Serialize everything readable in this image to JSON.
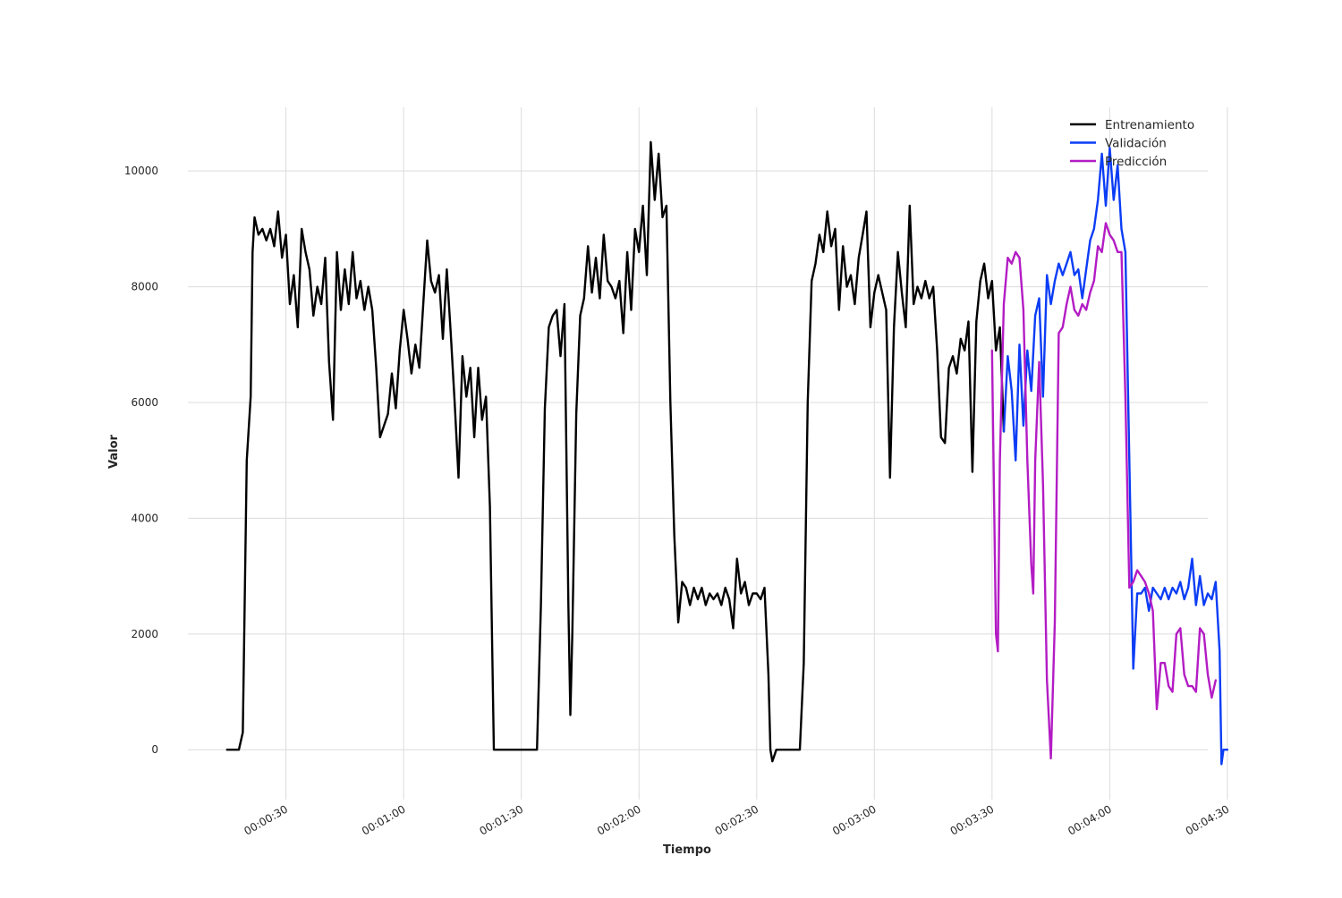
{
  "chart_data": {
    "type": "line",
    "title": "",
    "xlabel": "Tiempo",
    "ylabel": "Valor",
    "x_unit": "seconds (elapsed, shown as HH:MM:SS)",
    "xlim": [
      5,
      265
    ],
    "ylim": [
      -800,
      11100
    ],
    "grid": true,
    "legend_position": "top-right",
    "x_ticks": [
      {
        "value": 30,
        "label": "00:00:30"
      },
      {
        "value": 60,
        "label": "00:01:00"
      },
      {
        "value": 90,
        "label": "00:01:30"
      },
      {
        "value": 120,
        "label": "00:02:00"
      },
      {
        "value": 150,
        "label": "00:02:30"
      },
      {
        "value": 180,
        "label": "00:03:00"
      },
      {
        "value": 210,
        "label": "00:03:30"
      },
      {
        "value": 240,
        "label": "00:04:00"
      },
      {
        "value": 270,
        "label": "00:04:30"
      }
    ],
    "y_ticks": [
      {
        "value": 0,
        "label": "0"
      },
      {
        "value": 2000,
        "label": "2000"
      },
      {
        "value": 4000,
        "label": "4000"
      },
      {
        "value": 6000,
        "label": "6000"
      },
      {
        "value": 8000,
        "label": "8000"
      },
      {
        "value": 10000,
        "label": "10000"
      }
    ],
    "series": [
      {
        "name": "Entrenamiento",
        "color": "#000000",
        "points": [
          [
            15,
            0
          ],
          [
            18,
            0
          ],
          [
            19,
            300
          ],
          [
            20,
            5000
          ],
          [
            21,
            6100
          ],
          [
            21.5,
            8600
          ],
          [
            22,
            9200
          ],
          [
            23,
            8900
          ],
          [
            24,
            9000
          ],
          [
            25,
            8800
          ],
          [
            26,
            9000
          ],
          [
            27,
            8700
          ],
          [
            28,
            9300
          ],
          [
            29,
            8500
          ],
          [
            30,
            8900
          ],
          [
            31,
            7700
          ],
          [
            32,
            8200
          ],
          [
            33,
            7300
          ],
          [
            34,
            9000
          ],
          [
            35,
            8600
          ],
          [
            36,
            8300
          ],
          [
            37,
            7500
          ],
          [
            38,
            8000
          ],
          [
            39,
            7700
          ],
          [
            40,
            8500
          ],
          [
            41,
            6700
          ],
          [
            42,
            5700
          ],
          [
            43,
            8600
          ],
          [
            44,
            7600
          ],
          [
            45,
            8300
          ],
          [
            46,
            7700
          ],
          [
            47,
            8600
          ],
          [
            48,
            7800
          ],
          [
            49,
            8100
          ],
          [
            50,
            7600
          ],
          [
            51,
            8000
          ],
          [
            52,
            7600
          ],
          [
            53,
            6600
          ],
          [
            54,
            5400
          ],
          [
            55,
            5600
          ],
          [
            56,
            5800
          ],
          [
            57,
            6500
          ],
          [
            58,
            5900
          ],
          [
            59,
            6900
          ],
          [
            60,
            7600
          ],
          [
            61,
            7100
          ],
          [
            62,
            6500
          ],
          [
            63,
            7000
          ],
          [
            64,
            6600
          ],
          [
            65,
            7700
          ],
          [
            66,
            8800
          ],
          [
            67,
            8100
          ],
          [
            68,
            7900
          ],
          [
            69,
            8200
          ],
          [
            70,
            7100
          ],
          [
            71,
            8300
          ],
          [
            72,
            7200
          ],
          [
            73,
            6000
          ],
          [
            74,
            4700
          ],
          [
            75,
            6800
          ],
          [
            76,
            6100
          ],
          [
            77,
            6600
          ],
          [
            78,
            5400
          ],
          [
            79,
            6600
          ],
          [
            80,
            5700
          ],
          [
            81,
            6100
          ],
          [
            82,
            4200
          ],
          [
            83,
            0
          ],
          [
            94,
            0
          ],
          [
            95,
            2500
          ],
          [
            96,
            5900
          ],
          [
            97,
            7300
          ],
          [
            98,
            7500
          ],
          [
            99,
            7600
          ],
          [
            100,
            6800
          ],
          [
            101,
            7700
          ],
          [
            102,
            2500
          ],
          [
            102.5,
            600
          ],
          [
            103,
            2000
          ],
          [
            104,
            5800
          ],
          [
            105,
            7500
          ],
          [
            106,
            7800
          ],
          [
            107,
            8700
          ],
          [
            108,
            7900
          ],
          [
            109,
            8500
          ],
          [
            110,
            7800
          ],
          [
            111,
            8900
          ],
          [
            112,
            8100
          ],
          [
            113,
            8000
          ],
          [
            114,
            7800
          ],
          [
            115,
            8100
          ],
          [
            116,
            7200
          ],
          [
            117,
            8600
          ],
          [
            118,
            7600
          ],
          [
            119,
            9000
          ],
          [
            120,
            8600
          ],
          [
            121,
            9400
          ],
          [
            122,
            8200
          ],
          [
            123,
            10500
          ],
          [
            124,
            9500
          ],
          [
            125,
            10300
          ],
          [
            126,
            9200
          ],
          [
            127,
            9400
          ],
          [
            128,
            6000
          ],
          [
            129,
            3700
          ],
          [
            130,
            2200
          ],
          [
            131,
            2900
          ],
          [
            132,
            2800
          ],
          [
            133,
            2500
          ],
          [
            134,
            2800
          ],
          [
            135,
            2600
          ],
          [
            136,
            2800
          ],
          [
            137,
            2500
          ],
          [
            138,
            2700
          ],
          [
            139,
            2600
          ],
          [
            140,
            2700
          ],
          [
            141,
            2500
          ],
          [
            142,
            2800
          ],
          [
            143,
            2600
          ],
          [
            144,
            2100
          ],
          [
            145,
            3300
          ],
          [
            146,
            2700
          ],
          [
            147,
            2900
          ],
          [
            148,
            2500
          ],
          [
            149,
            2700
          ],
          [
            150,
            2700
          ],
          [
            151,
            2600
          ],
          [
            152,
            2800
          ],
          [
            153,
            1300
          ],
          [
            153.5,
            0
          ],
          [
            154,
            -200
          ],
          [
            155,
            0
          ],
          [
            161,
            0
          ],
          [
            162,
            1500
          ],
          [
            163,
            6000
          ],
          [
            164,
            8100
          ],
          [
            165,
            8400
          ],
          [
            166,
            8900
          ],
          [
            167,
            8600
          ],
          [
            168,
            9300
          ],
          [
            169,
            8700
          ],
          [
            170,
            9000
          ],
          [
            171,
            7600
          ],
          [
            172,
            8700
          ],
          [
            173,
            8000
          ],
          [
            174,
            8200
          ],
          [
            175,
            7700
          ],
          [
            176,
            8500
          ],
          [
            177,
            8900
          ],
          [
            178,
            9300
          ],
          [
            179,
            7300
          ],
          [
            180,
            7900
          ],
          [
            181,
            8200
          ],
          [
            182,
            7900
          ],
          [
            183,
            7600
          ],
          [
            184,
            4700
          ],
          [
            185,
            7300
          ],
          [
            186,
            8600
          ],
          [
            187,
            7900
          ],
          [
            188,
            7300
          ],
          [
            189,
            9400
          ],
          [
            190,
            7700
          ],
          [
            191,
            8000
          ],
          [
            192,
            7800
          ],
          [
            193,
            8100
          ],
          [
            194,
            7800
          ],
          [
            195,
            8000
          ],
          [
            196,
            6900
          ],
          [
            197,
            5400
          ],
          [
            198,
            5300
          ],
          [
            199,
            6600
          ],
          [
            200,
            6800
          ],
          [
            201,
            6500
          ],
          [
            202,
            7100
          ],
          [
            203,
            6900
          ],
          [
            204,
            7400
          ],
          [
            205,
            4800
          ],
          [
            206,
            7400
          ],
          [
            207,
            8100
          ],
          [
            208,
            8400
          ],
          [
            209,
            7800
          ],
          [
            210,
            8100
          ],
          [
            211,
            6900
          ],
          [
            212,
            7300
          ],
          [
            213,
            5500
          ]
        ]
      },
      {
        "name": "Validación",
        "color": "#0b3df5",
        "points": [
          [
            213,
            5500
          ],
          [
            214,
            6800
          ],
          [
            215,
            6200
          ],
          [
            216,
            5000
          ],
          [
            217,
            7000
          ],
          [
            218,
            5600
          ],
          [
            219,
            6900
          ],
          [
            220,
            6200
          ],
          [
            221,
            7500
          ],
          [
            222,
            7800
          ],
          [
            223,
            6100
          ],
          [
            224,
            8200
          ],
          [
            225,
            7700
          ],
          [
            226,
            8100
          ],
          [
            227,
            8400
          ],
          [
            228,
            8200
          ],
          [
            229,
            8400
          ],
          [
            230,
            8600
          ],
          [
            231,
            8200
          ],
          [
            232,
            8300
          ],
          [
            233,
            7800
          ],
          [
            234,
            8300
          ],
          [
            235,
            8800
          ],
          [
            236,
            9000
          ],
          [
            237,
            9500
          ],
          [
            238,
            10300
          ],
          [
            239,
            9400
          ],
          [
            240,
            10400
          ],
          [
            241,
            9500
          ],
          [
            242,
            10100
          ],
          [
            243,
            9000
          ],
          [
            244,
            8600
          ],
          [
            245,
            5000
          ],
          [
            246,
            1400
          ],
          [
            247,
            2700
          ],
          [
            248,
            2700
          ],
          [
            249,
            2800
          ],
          [
            250,
            2400
          ],
          [
            251,
            2800
          ],
          [
            252,
            2700
          ],
          [
            253,
            2600
          ],
          [
            254,
            2800
          ],
          [
            255,
            2600
          ],
          [
            256,
            2800
          ],
          [
            257,
            2700
          ],
          [
            258,
            2900
          ],
          [
            259,
            2600
          ],
          [
            260,
            2800
          ],
          [
            261,
            3300
          ],
          [
            262,
            2500
          ],
          [
            263,
            3000
          ],
          [
            264,
            2500
          ],
          [
            265,
            2700
          ],
          [
            266,
            2600
          ],
          [
            267,
            2900
          ],
          [
            268,
            1700
          ],
          [
            268.5,
            -250
          ],
          [
            269,
            0
          ],
          [
            270,
            0
          ]
        ]
      },
      {
        "name": "Predicción",
        "color": "#b31cc4",
        "points": [
          [
            210,
            6900
          ],
          [
            211,
            2000
          ],
          [
            211.5,
            1700
          ],
          [
            212,
            5000
          ],
          [
            213,
            7700
          ],
          [
            214,
            8500
          ],
          [
            215,
            8400
          ],
          [
            216,
            8600
          ],
          [
            217,
            8500
          ],
          [
            218,
            7600
          ],
          [
            219,
            5000
          ],
          [
            220,
            3200
          ],
          [
            220.5,
            2700
          ],
          [
            221,
            5000
          ],
          [
            222,
            6700
          ],
          [
            223,
            4600
          ],
          [
            224,
            1200
          ],
          [
            225,
            -150
          ],
          [
            226,
            2200
          ],
          [
            227,
            7200
          ],
          [
            228,
            7300
          ],
          [
            229,
            7700
          ],
          [
            230,
            8000
          ],
          [
            231,
            7600
          ],
          [
            232,
            7500
          ],
          [
            233,
            7700
          ],
          [
            234,
            7600
          ],
          [
            235,
            7900
          ],
          [
            236,
            8100
          ],
          [
            237,
            8700
          ],
          [
            238,
            8600
          ],
          [
            239,
            9100
          ],
          [
            240,
            8900
          ],
          [
            241,
            8800
          ],
          [
            242,
            8600
          ],
          [
            243,
            8600
          ],
          [
            244,
            6100
          ],
          [
            245,
            2800
          ],
          [
            246,
            2900
          ],
          [
            247,
            3100
          ],
          [
            248,
            3000
          ],
          [
            249,
            2900
          ],
          [
            250,
            2700
          ],
          [
            251,
            2400
          ],
          [
            252,
            700
          ],
          [
            253,
            1500
          ],
          [
            254,
            1500
          ],
          [
            255,
            1100
          ],
          [
            256,
            1000
          ],
          [
            257,
            2000
          ],
          [
            258,
            2100
          ],
          [
            259,
            1300
          ],
          [
            260,
            1100
          ],
          [
            261,
            1100
          ],
          [
            262,
            1000
          ],
          [
            263,
            2100
          ],
          [
            264,
            2000
          ],
          [
            265,
            1300
          ],
          [
            266,
            900
          ],
          [
            267,
            1200
          ]
        ]
      }
    ]
  }
}
